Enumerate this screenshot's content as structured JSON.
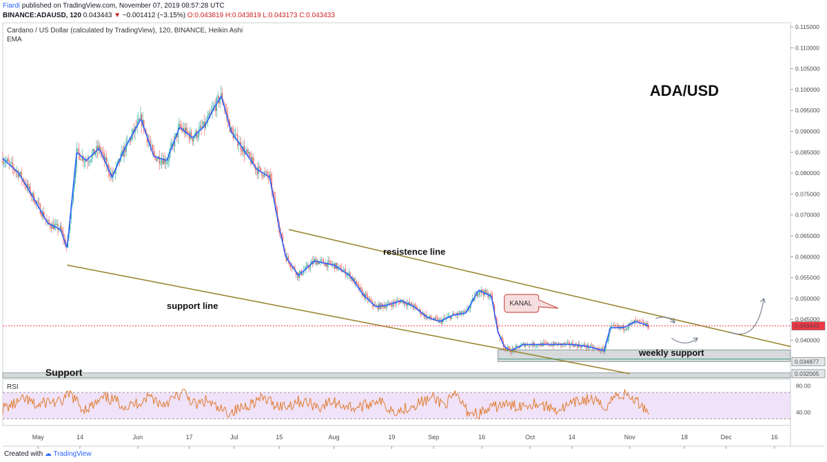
{
  "header": {
    "author": "Fiardi",
    "published": "published on TradingView.com, November 07, 2019 08:57:28 UTC",
    "symbol": "BINANCE:ADAUSD, 120",
    "quote": "0.043443",
    "change": "−0.001412 (−3.15%)",
    "ohlc": "O:0.043819 H:0.043819 L:0.043173 C:0.043433"
  },
  "footer": {
    "prefix": "Created with",
    "brand": "TradingView"
  },
  "colors": {
    "up": "#26a69a",
    "down": "#ef5350",
    "ema": "#2962ff",
    "trendline": "#9b8630",
    "rsi_line": "#e07b2c",
    "rsi_band": "#e9d5f5",
    "zone": "#c8cdd1",
    "price_line": "#f23645"
  },
  "chart_data": [
    {
      "type": "line",
      "title": "Cardano / US Dollar (calculated by TradingView), 120, BINANCE, Heikin Ashi",
      "indicator": "EMA",
      "ylim": [
        0.031,
        0.116
      ],
      "yticks": [
        "0.115000",
        "0.110000",
        "0.105000",
        "0.100000",
        "0.095000",
        "0.090000",
        "0.085000",
        "0.080000",
        "0.075000",
        "0.070000",
        "0.065000",
        "0.060000",
        "0.055000",
        "0.050000",
        "0.045000",
        "0.040000"
      ],
      "xticks": [
        "May",
        "14",
        "Jun",
        "17",
        "Jul",
        "15",
        "Aug",
        "19",
        "Sep",
        "16",
        "Oct",
        "14",
        "Nov",
        "18",
        "Dec",
        "16"
      ],
      "price_path": {
        "x": [
          "2019-04-20",
          "2019-04-25",
          "2019-04-30",
          "2019-05-04",
          "2019-05-08",
          "2019-05-10",
          "2019-05-13",
          "2019-05-16",
          "2019-05-20",
          "2019-05-24",
          "2019-05-28",
          "2019-06-02",
          "2019-06-06",
          "2019-06-10",
          "2019-06-14",
          "2019-06-18",
          "2019-06-22",
          "2019-06-25",
          "2019-06-27",
          "2019-06-30",
          "2019-07-04",
          "2019-07-08",
          "2019-07-12",
          "2019-07-15",
          "2019-07-17",
          "2019-07-21",
          "2019-07-26",
          "2019-08-01",
          "2019-08-06",
          "2019-08-10",
          "2019-08-14",
          "2019-08-18",
          "2019-08-22",
          "2019-08-26",
          "2019-08-30",
          "2019-09-03",
          "2019-09-07",
          "2019-09-11",
          "2019-09-15",
          "2019-09-19",
          "2019-09-21",
          "2019-09-23",
          "2019-09-25",
          "2019-09-29",
          "2019-10-04",
          "2019-10-09",
          "2019-10-14",
          "2019-10-19",
          "2019-10-24",
          "2019-10-26",
          "2019-10-30",
          "2019-11-03",
          "2019-11-07"
        ],
        "y": [
          0.0835,
          0.08,
          0.0735,
          0.068,
          0.0665,
          0.062,
          0.085,
          0.083,
          0.086,
          0.079,
          0.086,
          0.093,
          0.084,
          0.083,
          0.091,
          0.0885,
          0.0915,
          0.096,
          0.0985,
          0.09,
          0.0855,
          0.081,
          0.079,
          0.067,
          0.06,
          0.0555,
          0.059,
          0.058,
          0.0555,
          0.051,
          0.048,
          0.0485,
          0.0495,
          0.048,
          0.0455,
          0.0445,
          0.046,
          0.0465,
          0.052,
          0.0505,
          0.042,
          0.0385,
          0.0375,
          0.039,
          0.039,
          0.039,
          0.039,
          0.0385,
          0.0375,
          0.043,
          0.043,
          0.0445,
          0.0434
        ]
      },
      "levels": {
        "current_price": "0.043443",
        "weekly_support": "0.034877",
        "support": "0.032005"
      },
      "trendlines": [
        {
          "name": "resistence line",
          "x": [
            "2019-07-18",
            "2019-12-21"
          ],
          "y": [
            0.0665,
            0.0385
          ]
        },
        {
          "name": "support line",
          "x": [
            "2019-05-10",
            "2019-11-01"
          ],
          "y": [
            0.058,
            0.032
          ]
        },
        {
          "name": "mid line",
          "x": [
            "2019-09-21",
            "2019-12-21"
          ],
          "y": [
            0.0355,
            0.0355
          ]
        }
      ],
      "zones": [
        {
          "label": "weekly support",
          "x": [
            "2019-09-21",
            "2019-12-21"
          ],
          "y": [
            0.0349,
            0.0377
          ]
        },
        {
          "label": "Support",
          "x": [
            "2019-04-20",
            "2019-12-21"
          ],
          "y": [
            0.031,
            0.0322
          ]
        }
      ],
      "annotations": [
        {
          "text": "ADA/USD",
          "x": "2019-11-18",
          "y": 0.0985
        },
        {
          "text": "resistence line",
          "x": "2019-08-26",
          "y": 0.0605
        },
        {
          "text": "support line",
          "x": "2019-06-18",
          "y": 0.0475
        },
        {
          "text": "KANAL",
          "x": "2019-09-29",
          "y": 0.049
        },
        {
          "text": "weekly support",
          "x": "2019-11-14",
          "y": 0.0363
        },
        {
          "text": "Support",
          "x": "2019-05-09",
          "y": 0.0315
        }
      ]
    },
    {
      "type": "line",
      "title": "RSI",
      "ylim": [
        20,
        90
      ],
      "yticks": [
        "80.00",
        "40.00"
      ],
      "band": [
        30,
        70
      ],
      "values": [
        46,
        52,
        60,
        49,
        57,
        54,
        68,
        45,
        50,
        62,
        57,
        48,
        55,
        65,
        52,
        60,
        70,
        50,
        58,
        44,
        40,
        46,
        55,
        61,
        52,
        49,
        57,
        54,
        48,
        56,
        51,
        47,
        50,
        60,
        46,
        42,
        50,
        56,
        61,
        52,
        66,
        41,
        38,
        45,
        52,
        49,
        51,
        55,
        48,
        44,
        50,
        58,
        60,
        46,
        65,
        67,
        55,
        42
      ]
    }
  ]
}
